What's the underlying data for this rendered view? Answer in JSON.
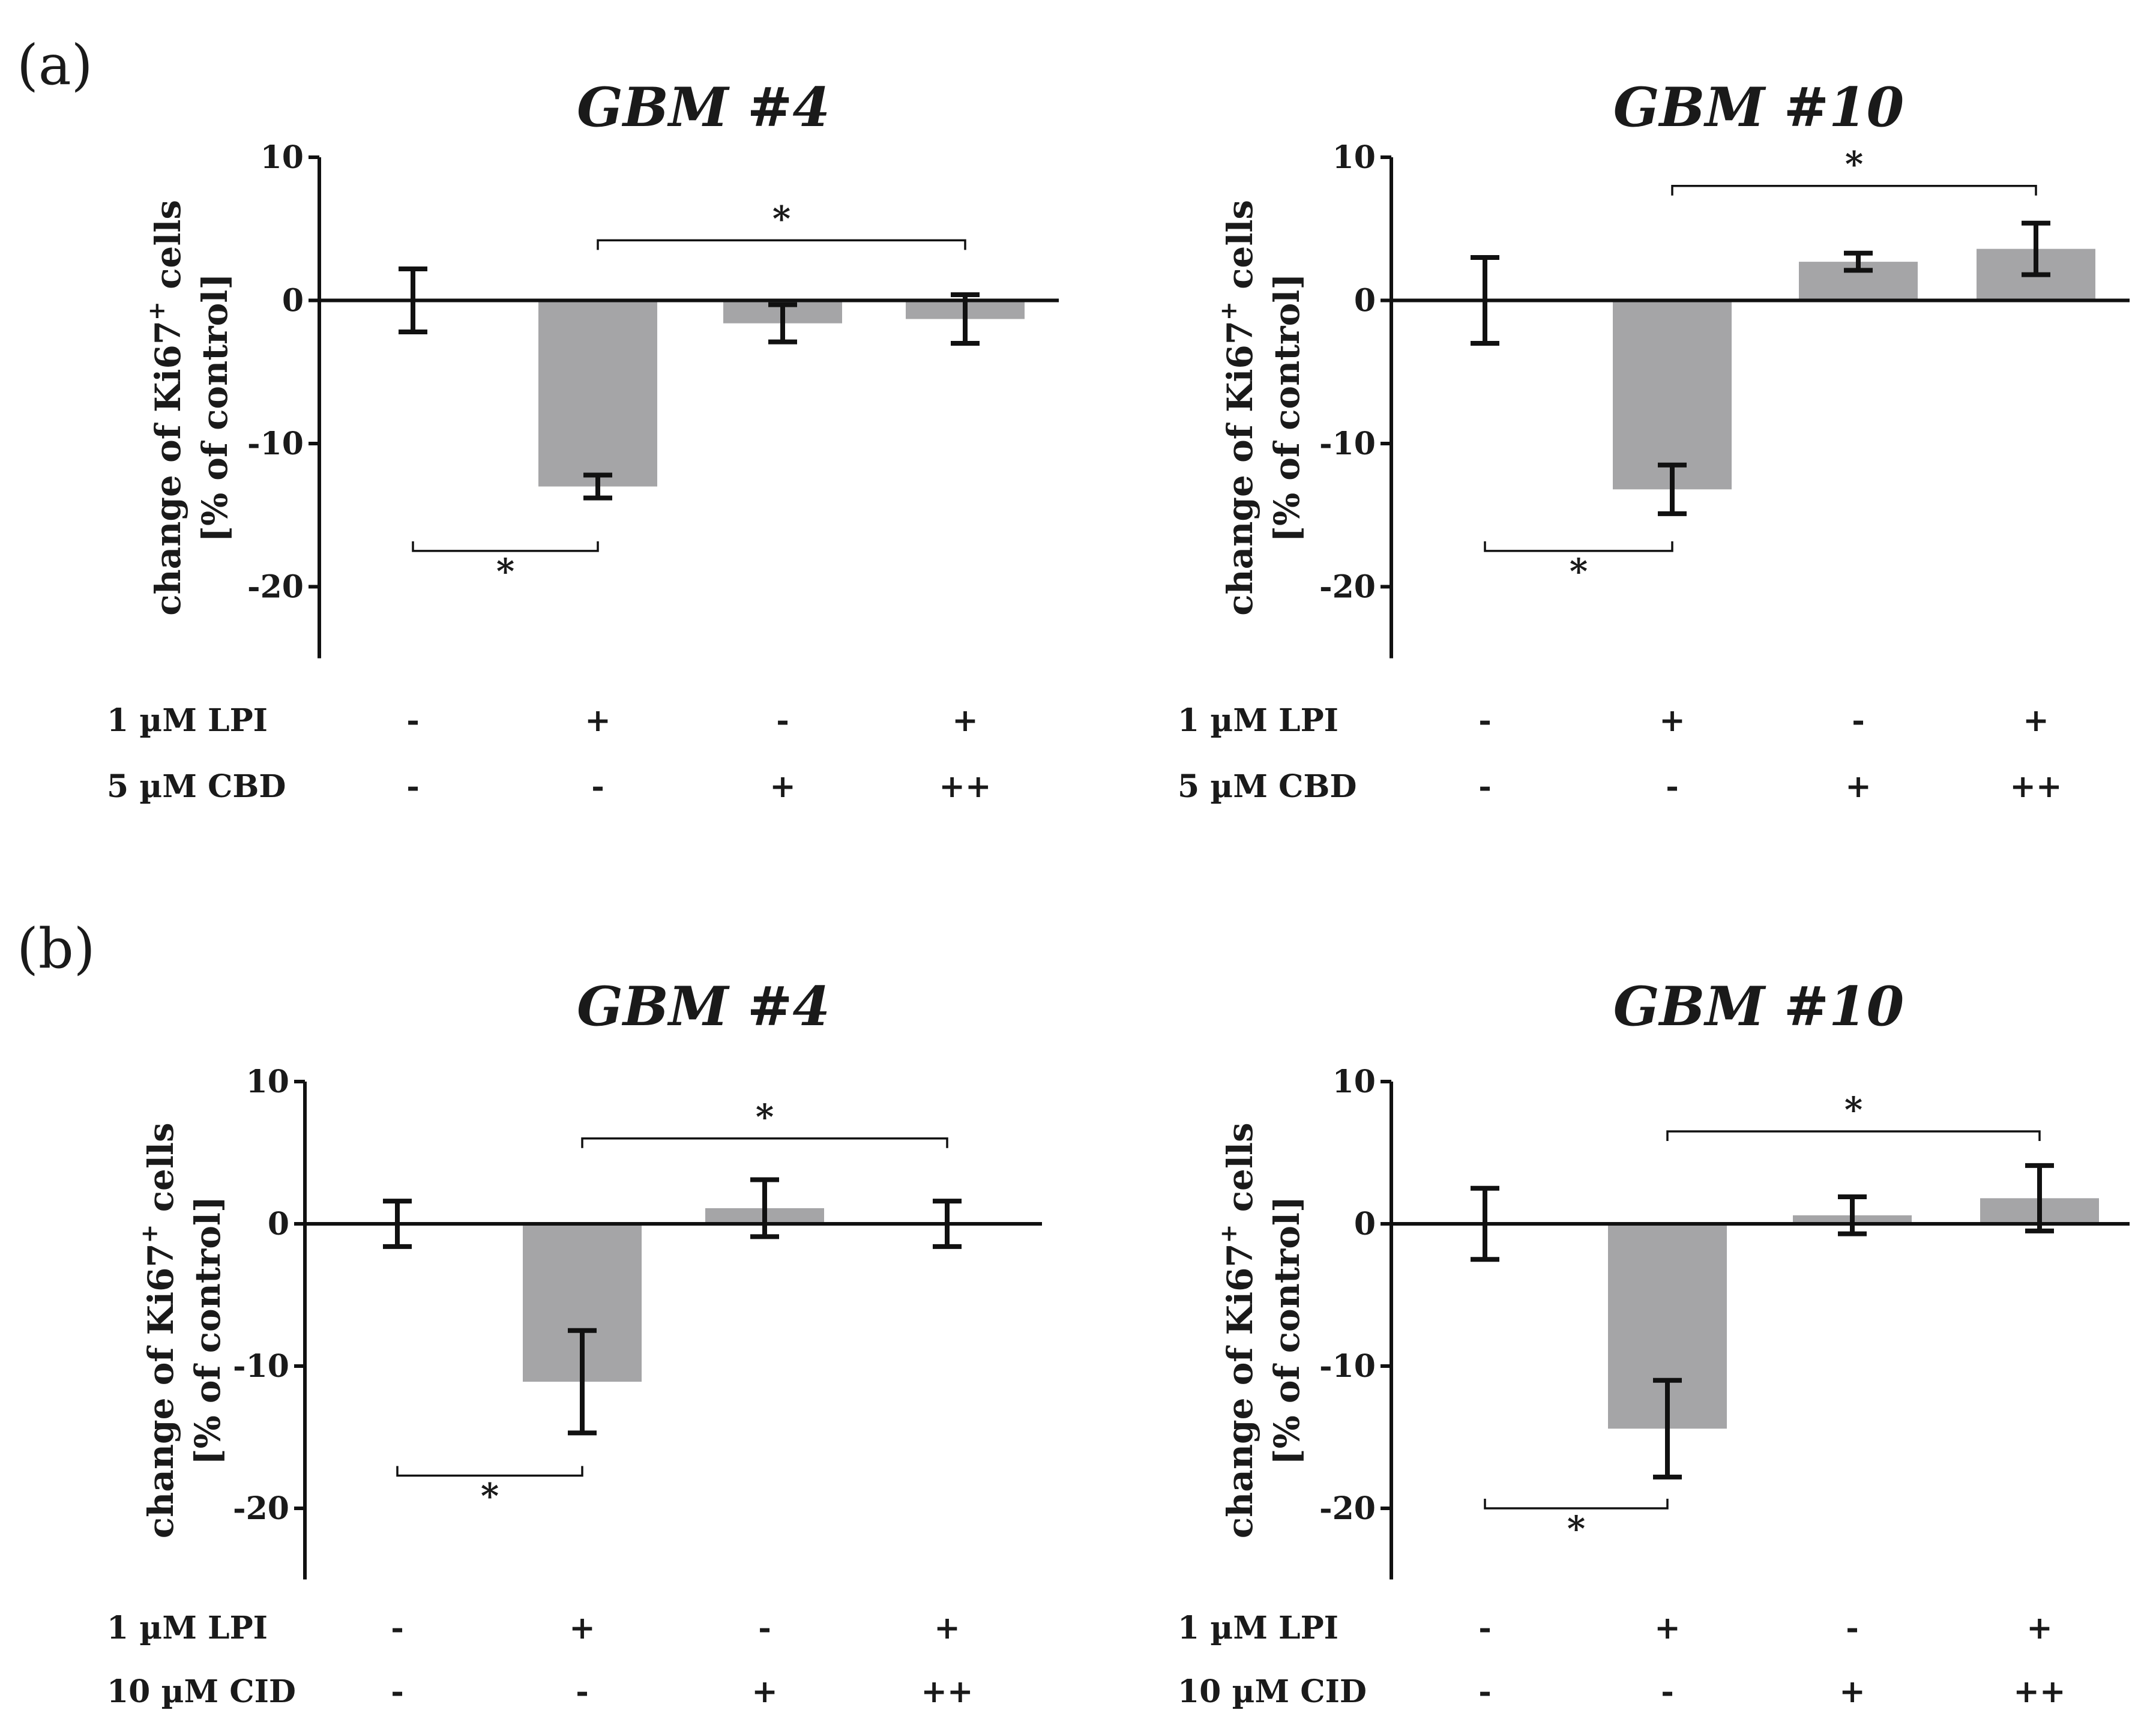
{
  "panels": [
    {
      "label": "(a)"
    },
    {
      "label": "(b)"
    }
  ],
  "chart_data": [
    {
      "type": "bar",
      "panel": "(a)",
      "title": "GBM #4",
      "ylabel_line1": "change of Ki67",
      "ylabel_sup": "+",
      "ylabel_tail": " cells",
      "ylabel_line2": "[% of control]",
      "ylim": [
        -25,
        10
      ],
      "yticks": [
        10,
        0,
        -10,
        -20
      ],
      "values": [
        0,
        -13.0,
        -1.6,
        -1.3
      ],
      "errors": [
        2.2,
        0.8,
        1.3,
        1.7
      ],
      "treatments": [
        {
          "label": "1 µM LPI",
          "values": [
            "-",
            "+",
            "-",
            "+"
          ]
        },
        {
          "label": "5 µM CBD",
          "values": [
            "-",
            "-",
            "+",
            "++"
          ]
        }
      ],
      "significance": [
        {
          "from": 0,
          "to": 1,
          "y": -17.5,
          "side": "below",
          "label": "*"
        },
        {
          "from": 1,
          "to": 3,
          "y": 4.2,
          "side": "above",
          "label": "*"
        }
      ]
    },
    {
      "type": "bar",
      "panel": "(a)",
      "title": "GBM #10",
      "ylabel_line1": "change of Ki67",
      "ylabel_sup": "+",
      "ylabel_tail": " cells",
      "ylabel_line2": "[% of control]",
      "ylim": [
        -25,
        10
      ],
      "yticks": [
        10,
        0,
        -10,
        -20
      ],
      "values": [
        0,
        -13.2,
        2.7,
        3.6
      ],
      "errors": [
        3.0,
        1.7,
        0.6,
        1.8
      ],
      "treatments": [
        {
          "label": "1 µM LPI",
          "values": [
            "-",
            "+",
            "-",
            "+"
          ]
        },
        {
          "label": "5 µM CBD",
          "values": [
            "-",
            "-",
            "+",
            "++"
          ]
        }
      ],
      "significance": [
        {
          "from": 0,
          "to": 1,
          "y": -17.5,
          "side": "below",
          "label": "*"
        },
        {
          "from": 1,
          "to": 3,
          "y": 8.0,
          "side": "above",
          "label": "*"
        }
      ]
    },
    {
      "type": "bar",
      "panel": "(b)",
      "title": "GBM #4",
      "ylabel_line1": "change of Ki67",
      "ylabel_sup": "+",
      "ylabel_tail": " cells",
      "ylabel_line2": "[% of control]",
      "ylim": [
        -25,
        10
      ],
      "yticks": [
        10,
        0,
        -10,
        -20
      ],
      "values": [
        0,
        -11.1,
        1.1,
        0
      ],
      "errors": [
        1.6,
        3.6,
        2.0,
        1.6
      ],
      "treatments": [
        {
          "label": "1 µM LPI",
          "values": [
            "-",
            "+",
            "-",
            "+"
          ]
        },
        {
          "label": "10 µM CID",
          "values": [
            "-",
            "-",
            "+",
            "++"
          ]
        }
      ],
      "significance": [
        {
          "from": 0,
          "to": 1,
          "y": -17.7,
          "side": "below",
          "label": "*"
        },
        {
          "from": 1,
          "to": 3,
          "y": 6.0,
          "side": "above",
          "label": "*"
        }
      ]
    },
    {
      "type": "bar",
      "panel": "(b)",
      "title": "GBM #10",
      "ylabel_line1": "change of Ki67",
      "ylabel_sup": "+",
      "ylabel_tail": " cells",
      "ylabel_line2": "[% of control]",
      "ylim": [
        -25,
        10
      ],
      "yticks": [
        10,
        0,
        -10,
        -20
      ],
      "values": [
        0,
        -14.4,
        0.6,
        1.8
      ],
      "errors": [
        2.5,
        3.4,
        1.3,
        2.3
      ],
      "treatments": [
        {
          "label": "1 µM LPI",
          "values": [
            "-",
            "+",
            "-",
            "+"
          ]
        },
        {
          "label": "10 µM CID",
          "values": [
            "-",
            "-",
            "+",
            "++"
          ]
        }
      ],
      "significance": [
        {
          "from": 0,
          "to": 1,
          "y": -20.0,
          "side": "below",
          "label": "*"
        },
        {
          "from": 1,
          "to": 3,
          "y": 6.5,
          "side": "above",
          "label": "*"
        }
      ]
    }
  ]
}
